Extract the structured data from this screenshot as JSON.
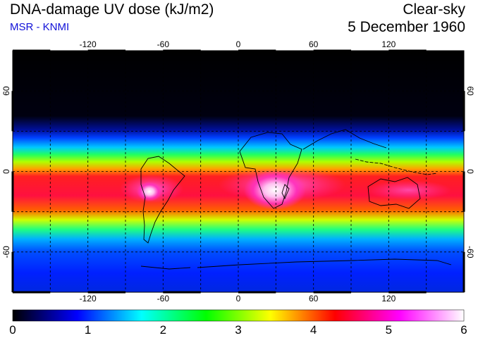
{
  "header": {
    "title": "DNA-damage UV dose (kJ/m2)",
    "source": "MSR - KNMI",
    "condition": "Clear-sky",
    "date": "5 December 1960"
  },
  "map": {
    "projection": "equirectangular",
    "lon_range": [
      -180,
      180
    ],
    "lat_range": [
      -90,
      90
    ],
    "lon_ticks": [
      -120,
      -60,
      0,
      60,
      120
    ],
    "lat_ticks": [
      60,
      0,
      -60
    ],
    "gridlines": "dashed",
    "coastlines": true
  },
  "colorbar": {
    "range": [
      0,
      6
    ],
    "tick_labels": [
      "0",
      "1",
      "2",
      "3",
      "4",
      "5",
      "6"
    ],
    "colors": [
      "#000000",
      "#0000ff",
      "#00ffff",
      "#00ff00",
      "#ffff00",
      "#ff0000",
      "#ff00ff",
      "#ffffff"
    ]
  }
}
